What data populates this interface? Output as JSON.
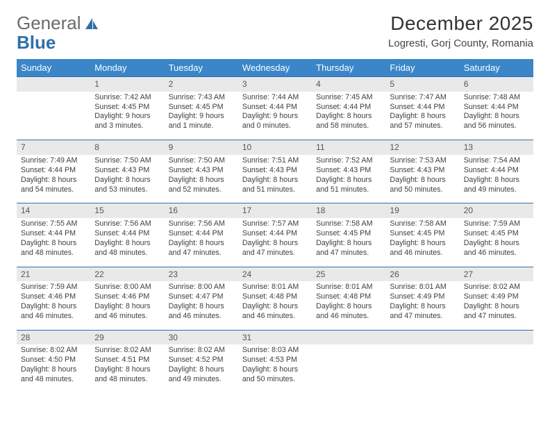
{
  "brand": {
    "part1": "General",
    "part2": "Blue"
  },
  "title": "December 2025",
  "location": "Logresti, Gorj County, Romania",
  "colors": {
    "header_bg": "#3a86c8",
    "header_fg": "#ffffff",
    "rule": "#2f6fa7",
    "daynum_bg": "#e9e9e9",
    "logo_blue": "#2f6fa7"
  },
  "weekdays": [
    "Sunday",
    "Monday",
    "Tuesday",
    "Wednesday",
    "Thursday",
    "Friday",
    "Saturday"
  ],
  "weeks": [
    {
      "nums": [
        "",
        "1",
        "2",
        "3",
        "4",
        "5",
        "6"
      ],
      "cells": [
        null,
        {
          "sr": "Sunrise: 7:42 AM",
          "ss": "Sunset: 4:45 PM",
          "d1": "Daylight: 9 hours",
          "d2": "and 3 minutes."
        },
        {
          "sr": "Sunrise: 7:43 AM",
          "ss": "Sunset: 4:45 PM",
          "d1": "Daylight: 9 hours",
          "d2": "and 1 minute."
        },
        {
          "sr": "Sunrise: 7:44 AM",
          "ss": "Sunset: 4:44 PM",
          "d1": "Daylight: 9 hours",
          "d2": "and 0 minutes."
        },
        {
          "sr": "Sunrise: 7:45 AM",
          "ss": "Sunset: 4:44 PM",
          "d1": "Daylight: 8 hours",
          "d2": "and 58 minutes."
        },
        {
          "sr": "Sunrise: 7:47 AM",
          "ss": "Sunset: 4:44 PM",
          "d1": "Daylight: 8 hours",
          "d2": "and 57 minutes."
        },
        {
          "sr": "Sunrise: 7:48 AM",
          "ss": "Sunset: 4:44 PM",
          "d1": "Daylight: 8 hours",
          "d2": "and 56 minutes."
        }
      ]
    },
    {
      "nums": [
        "7",
        "8",
        "9",
        "10",
        "11",
        "12",
        "13"
      ],
      "cells": [
        {
          "sr": "Sunrise: 7:49 AM",
          "ss": "Sunset: 4:44 PM",
          "d1": "Daylight: 8 hours",
          "d2": "and 54 minutes."
        },
        {
          "sr": "Sunrise: 7:50 AM",
          "ss": "Sunset: 4:43 PM",
          "d1": "Daylight: 8 hours",
          "d2": "and 53 minutes."
        },
        {
          "sr": "Sunrise: 7:50 AM",
          "ss": "Sunset: 4:43 PM",
          "d1": "Daylight: 8 hours",
          "d2": "and 52 minutes."
        },
        {
          "sr": "Sunrise: 7:51 AM",
          "ss": "Sunset: 4:43 PM",
          "d1": "Daylight: 8 hours",
          "d2": "and 51 minutes."
        },
        {
          "sr": "Sunrise: 7:52 AM",
          "ss": "Sunset: 4:43 PM",
          "d1": "Daylight: 8 hours",
          "d2": "and 51 minutes."
        },
        {
          "sr": "Sunrise: 7:53 AM",
          "ss": "Sunset: 4:43 PM",
          "d1": "Daylight: 8 hours",
          "d2": "and 50 minutes."
        },
        {
          "sr": "Sunrise: 7:54 AM",
          "ss": "Sunset: 4:44 PM",
          "d1": "Daylight: 8 hours",
          "d2": "and 49 minutes."
        }
      ]
    },
    {
      "nums": [
        "14",
        "15",
        "16",
        "17",
        "18",
        "19",
        "20"
      ],
      "cells": [
        {
          "sr": "Sunrise: 7:55 AM",
          "ss": "Sunset: 4:44 PM",
          "d1": "Daylight: 8 hours",
          "d2": "and 48 minutes."
        },
        {
          "sr": "Sunrise: 7:56 AM",
          "ss": "Sunset: 4:44 PM",
          "d1": "Daylight: 8 hours",
          "d2": "and 48 minutes."
        },
        {
          "sr": "Sunrise: 7:56 AM",
          "ss": "Sunset: 4:44 PM",
          "d1": "Daylight: 8 hours",
          "d2": "and 47 minutes."
        },
        {
          "sr": "Sunrise: 7:57 AM",
          "ss": "Sunset: 4:44 PM",
          "d1": "Daylight: 8 hours",
          "d2": "and 47 minutes."
        },
        {
          "sr": "Sunrise: 7:58 AM",
          "ss": "Sunset: 4:45 PM",
          "d1": "Daylight: 8 hours",
          "d2": "and 47 minutes."
        },
        {
          "sr": "Sunrise: 7:58 AM",
          "ss": "Sunset: 4:45 PM",
          "d1": "Daylight: 8 hours",
          "d2": "and 46 minutes."
        },
        {
          "sr": "Sunrise: 7:59 AM",
          "ss": "Sunset: 4:45 PM",
          "d1": "Daylight: 8 hours",
          "d2": "and 46 minutes."
        }
      ]
    },
    {
      "nums": [
        "21",
        "22",
        "23",
        "24",
        "25",
        "26",
        "27"
      ],
      "cells": [
        {
          "sr": "Sunrise: 7:59 AM",
          "ss": "Sunset: 4:46 PM",
          "d1": "Daylight: 8 hours",
          "d2": "and 46 minutes."
        },
        {
          "sr": "Sunrise: 8:00 AM",
          "ss": "Sunset: 4:46 PM",
          "d1": "Daylight: 8 hours",
          "d2": "and 46 minutes."
        },
        {
          "sr": "Sunrise: 8:00 AM",
          "ss": "Sunset: 4:47 PM",
          "d1": "Daylight: 8 hours",
          "d2": "and 46 minutes."
        },
        {
          "sr": "Sunrise: 8:01 AM",
          "ss": "Sunset: 4:48 PM",
          "d1": "Daylight: 8 hours",
          "d2": "and 46 minutes."
        },
        {
          "sr": "Sunrise: 8:01 AM",
          "ss": "Sunset: 4:48 PM",
          "d1": "Daylight: 8 hours",
          "d2": "and 46 minutes."
        },
        {
          "sr": "Sunrise: 8:01 AM",
          "ss": "Sunset: 4:49 PM",
          "d1": "Daylight: 8 hours",
          "d2": "and 47 minutes."
        },
        {
          "sr": "Sunrise: 8:02 AM",
          "ss": "Sunset: 4:49 PM",
          "d1": "Daylight: 8 hours",
          "d2": "and 47 minutes."
        }
      ]
    },
    {
      "nums": [
        "28",
        "29",
        "30",
        "31",
        "",
        "",
        ""
      ],
      "cells": [
        {
          "sr": "Sunrise: 8:02 AM",
          "ss": "Sunset: 4:50 PM",
          "d1": "Daylight: 8 hours",
          "d2": "and 48 minutes."
        },
        {
          "sr": "Sunrise: 8:02 AM",
          "ss": "Sunset: 4:51 PM",
          "d1": "Daylight: 8 hours",
          "d2": "and 48 minutes."
        },
        {
          "sr": "Sunrise: 8:02 AM",
          "ss": "Sunset: 4:52 PM",
          "d1": "Daylight: 8 hours",
          "d2": "and 49 minutes."
        },
        {
          "sr": "Sunrise: 8:03 AM",
          "ss": "Sunset: 4:53 PM",
          "d1": "Daylight: 8 hours",
          "d2": "and 50 minutes."
        },
        null,
        null,
        null
      ]
    }
  ]
}
